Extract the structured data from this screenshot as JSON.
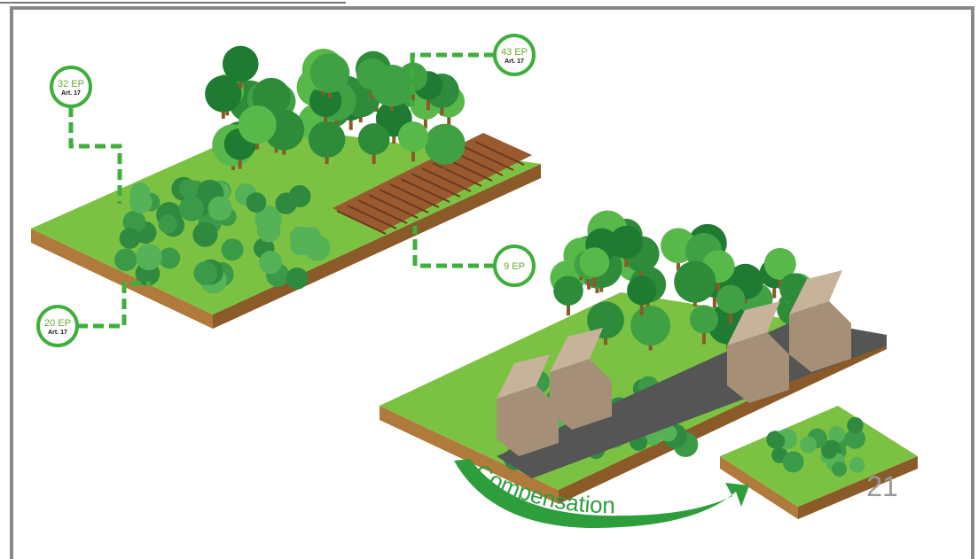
{
  "callouts": [
    {
      "label": "32 EP",
      "note": "Art. 17"
    },
    {
      "label": "43 EP",
      "note": "Art. 17"
    },
    {
      "label": "9 EP"
    },
    {
      "label": "20 EP",
      "note": "Art. 17"
    }
  ],
  "arrow_label": "Compensation",
  "page_number": "21"
}
